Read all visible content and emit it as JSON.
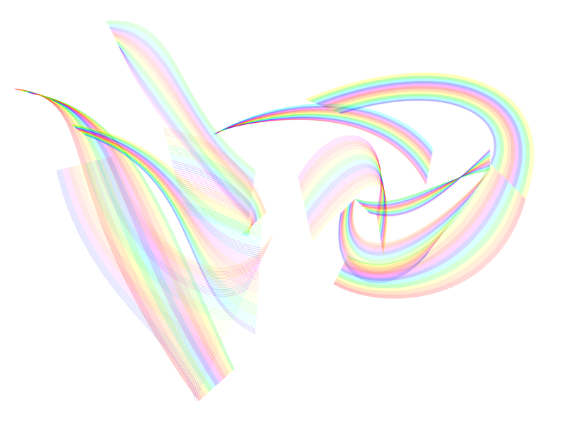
{
  "artwork": {
    "background_color": "#ffffff",
    "subject": "abstract-rainbow-ribbons",
    "palette": [
      "#ff0000",
      "#ff8800",
      "#ffff00",
      "#00ff00",
      "#00ffff",
      "#0000ff",
      "#ff00ff"
    ]
  }
}
